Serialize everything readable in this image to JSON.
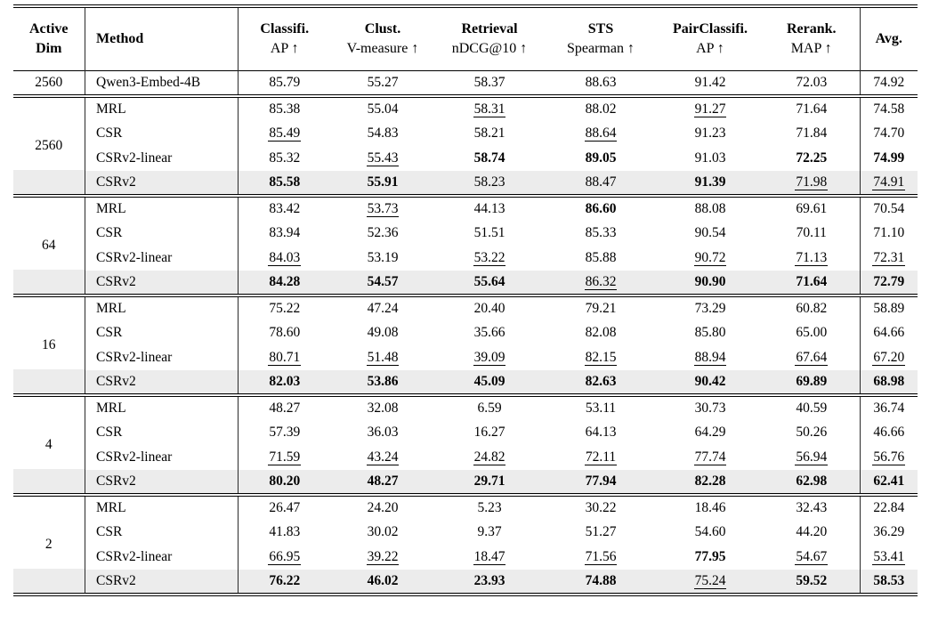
{
  "table": {
    "header": {
      "active_dim": [
        "Active",
        "Dim"
      ],
      "method": "Method",
      "metrics": [
        {
          "task": "Classifi.",
          "metric": "AP ↑"
        },
        {
          "task": "Clust.",
          "metric": "V-measure ↑"
        },
        {
          "task": "Retrieval",
          "metric": "nDCG@10 ↑"
        },
        {
          "task": "STS",
          "metric": "Spearman ↑"
        },
        {
          "task": "PairClassifi.",
          "metric": "AP ↑"
        },
        {
          "task": "Rerank.",
          "metric": "MAP ↑"
        }
      ],
      "avg": "Avg."
    },
    "baseline": {
      "dim": "2560",
      "method": "Qwen3-Embed-4B",
      "cells": [
        [
          "85.79",
          ""
        ],
        [
          "55.27",
          ""
        ],
        [
          "58.37",
          ""
        ],
        [
          "88.63",
          ""
        ],
        [
          "91.42",
          ""
        ],
        [
          "72.03",
          ""
        ],
        [
          "74.92",
          ""
        ]
      ]
    },
    "groups": [
      {
        "dim": "2560",
        "rows": [
          {
            "method": "MRL",
            "highlight": false,
            "cells": [
              [
                "85.38",
                ""
              ],
              [
                "55.04",
                ""
              ],
              [
                "58.31",
                "u"
              ],
              [
                "88.02",
                ""
              ],
              [
                "91.27",
                "u"
              ],
              [
                "71.64",
                ""
              ],
              [
                "74.58",
                ""
              ]
            ]
          },
          {
            "method": "CSR",
            "highlight": false,
            "cells": [
              [
                "85.49",
                "u"
              ],
              [
                "54.83",
                ""
              ],
              [
                "58.21",
                ""
              ],
              [
                "88.64",
                "u"
              ],
              [
                "91.23",
                ""
              ],
              [
                "71.84",
                ""
              ],
              [
                "74.70",
                ""
              ]
            ]
          },
          {
            "method": "CSRv2-linear",
            "highlight": false,
            "cells": [
              [
                "85.32",
                ""
              ],
              [
                "55.43",
                "u"
              ],
              [
                "58.74",
                "b"
              ],
              [
                "89.05",
                "b"
              ],
              [
                "91.03",
                ""
              ],
              [
                "72.25",
                "b"
              ],
              [
                "74.99",
                "b"
              ]
            ]
          },
          {
            "method": "CSRv2",
            "highlight": true,
            "cells": [
              [
                "85.58",
                "b"
              ],
              [
                "55.91",
                "b"
              ],
              [
                "58.23",
                ""
              ],
              [
                "88.47",
                ""
              ],
              [
                "91.39",
                "b"
              ],
              [
                "71.98",
                "u"
              ],
              [
                "74.91",
                "u"
              ]
            ]
          }
        ]
      },
      {
        "dim": "64",
        "rows": [
          {
            "method": "MRL",
            "highlight": false,
            "cells": [
              [
                "83.42",
                ""
              ],
              [
                "53.73",
                "u"
              ],
              [
                "44.13",
                ""
              ],
              [
                "86.60",
                "b"
              ],
              [
                "88.08",
                ""
              ],
              [
                "69.61",
                ""
              ],
              [
                "70.54",
                ""
              ]
            ]
          },
          {
            "method": "CSR",
            "highlight": false,
            "cells": [
              [
                "83.94",
                ""
              ],
              [
                "52.36",
                ""
              ],
              [
                "51.51",
                ""
              ],
              [
                "85.33",
                ""
              ],
              [
                "90.54",
                ""
              ],
              [
                "70.11",
                ""
              ],
              [
                "71.10",
                ""
              ]
            ]
          },
          {
            "method": "CSRv2-linear",
            "highlight": false,
            "cells": [
              [
                "84.03",
                "u"
              ],
              [
                "53.19",
                ""
              ],
              [
                "53.22",
                "u"
              ],
              [
                "85.88",
                ""
              ],
              [
                "90.72",
                "u"
              ],
              [
                "71.13",
                "u"
              ],
              [
                "72.31",
                "u"
              ]
            ]
          },
          {
            "method": "CSRv2",
            "highlight": true,
            "cells": [
              [
                "84.28",
                "b"
              ],
              [
                "54.57",
                "b"
              ],
              [
                "55.64",
                "b"
              ],
              [
                "86.32",
                "u"
              ],
              [
                "90.90",
                "b"
              ],
              [
                "71.64",
                "b"
              ],
              [
                "72.79",
                "b"
              ]
            ]
          }
        ]
      },
      {
        "dim": "16",
        "rows": [
          {
            "method": "MRL",
            "highlight": false,
            "cells": [
              [
                "75.22",
                ""
              ],
              [
                "47.24",
                ""
              ],
              [
                "20.40",
                ""
              ],
              [
                "79.21",
                ""
              ],
              [
                "73.29",
                ""
              ],
              [
                "60.82",
                ""
              ],
              [
                "58.89",
                ""
              ]
            ]
          },
          {
            "method": "CSR",
            "highlight": false,
            "cells": [
              [
                "78.60",
                ""
              ],
              [
                "49.08",
                ""
              ],
              [
                "35.66",
                ""
              ],
              [
                "82.08",
                ""
              ],
              [
                "85.80",
                ""
              ],
              [
                "65.00",
                ""
              ],
              [
                "64.66",
                ""
              ]
            ]
          },
          {
            "method": "CSRv2-linear",
            "highlight": false,
            "cells": [
              [
                "80.71",
                "u"
              ],
              [
                "51.48",
                "u"
              ],
              [
                "39.09",
                "u"
              ],
              [
                "82.15",
                "u"
              ],
              [
                "88.94",
                "u"
              ],
              [
                "67.64",
                "u"
              ],
              [
                "67.20",
                "u"
              ]
            ]
          },
          {
            "method": "CSRv2",
            "highlight": true,
            "cells": [
              [
                "82.03",
                "b"
              ],
              [
                "53.86",
                "b"
              ],
              [
                "45.09",
                "b"
              ],
              [
                "82.63",
                "b"
              ],
              [
                "90.42",
                "b"
              ],
              [
                "69.89",
                "b"
              ],
              [
                "68.98",
                "b"
              ]
            ]
          }
        ]
      },
      {
        "dim": "4",
        "rows": [
          {
            "method": "MRL",
            "highlight": false,
            "cells": [
              [
                "48.27",
                ""
              ],
              [
                "32.08",
                ""
              ],
              [
                "6.59",
                ""
              ],
              [
                "53.11",
                ""
              ],
              [
                "30.73",
                ""
              ],
              [
                "40.59",
                ""
              ],
              [
                "36.74",
                ""
              ]
            ]
          },
          {
            "method": "CSR",
            "highlight": false,
            "cells": [
              [
                "57.39",
                ""
              ],
              [
                "36.03",
                ""
              ],
              [
                "16.27",
                ""
              ],
              [
                "64.13",
                ""
              ],
              [
                "64.29",
                ""
              ],
              [
                "50.26",
                ""
              ],
              [
                "46.66",
                ""
              ]
            ]
          },
          {
            "method": "CSRv2-linear",
            "highlight": false,
            "cells": [
              [
                "71.59",
                "u"
              ],
              [
                "43.24",
                "u"
              ],
              [
                "24.82",
                "u"
              ],
              [
                "72.11",
                "u"
              ],
              [
                "77.74",
                "u"
              ],
              [
                "56.94",
                "u"
              ],
              [
                "56.76",
                "u"
              ]
            ]
          },
          {
            "method": "CSRv2",
            "highlight": true,
            "cells": [
              [
                "80.20",
                "b"
              ],
              [
                "48.27",
                "b"
              ],
              [
                "29.71",
                "b"
              ],
              [
                "77.94",
                "b"
              ],
              [
                "82.28",
                "b"
              ],
              [
                "62.98",
                "b"
              ],
              [
                "62.41",
                "b"
              ]
            ]
          }
        ]
      },
      {
        "dim": "2",
        "rows": [
          {
            "method": "MRL",
            "highlight": false,
            "cells": [
              [
                "26.47",
                ""
              ],
              [
                "24.20",
                ""
              ],
              [
                "5.23",
                ""
              ],
              [
                "30.22",
                ""
              ],
              [
                "18.46",
                ""
              ],
              [
                "32.43",
                ""
              ],
              [
                "22.84",
                ""
              ]
            ]
          },
          {
            "method": "CSR",
            "highlight": false,
            "cells": [
              [
                "41.83",
                ""
              ],
              [
                "30.02",
                ""
              ],
              [
                "9.37",
                ""
              ],
              [
                "51.27",
                ""
              ],
              [
                "54.60",
                ""
              ],
              [
                "44.20",
                ""
              ],
              [
                "36.29",
                ""
              ]
            ]
          },
          {
            "method": "CSRv2-linear",
            "highlight": false,
            "cells": [
              [
                "66.95",
                "u"
              ],
              [
                "39.22",
                "u"
              ],
              [
                "18.47",
                "u"
              ],
              [
                "71.56",
                "u"
              ],
              [
                "77.95",
                "b"
              ],
              [
                "54.67",
                "u"
              ],
              [
                "53.41",
                "u"
              ]
            ]
          },
          {
            "method": "CSRv2",
            "highlight": true,
            "cells": [
              [
                "76.22",
                "b"
              ],
              [
                "46.02",
                "b"
              ],
              [
                "23.93",
                "b"
              ],
              [
                "74.88",
                "b"
              ],
              [
                "75.24",
                "u"
              ],
              [
                "59.52",
                "b"
              ],
              [
                "58.53",
                "b"
              ]
            ]
          }
        ]
      }
    ]
  }
}
